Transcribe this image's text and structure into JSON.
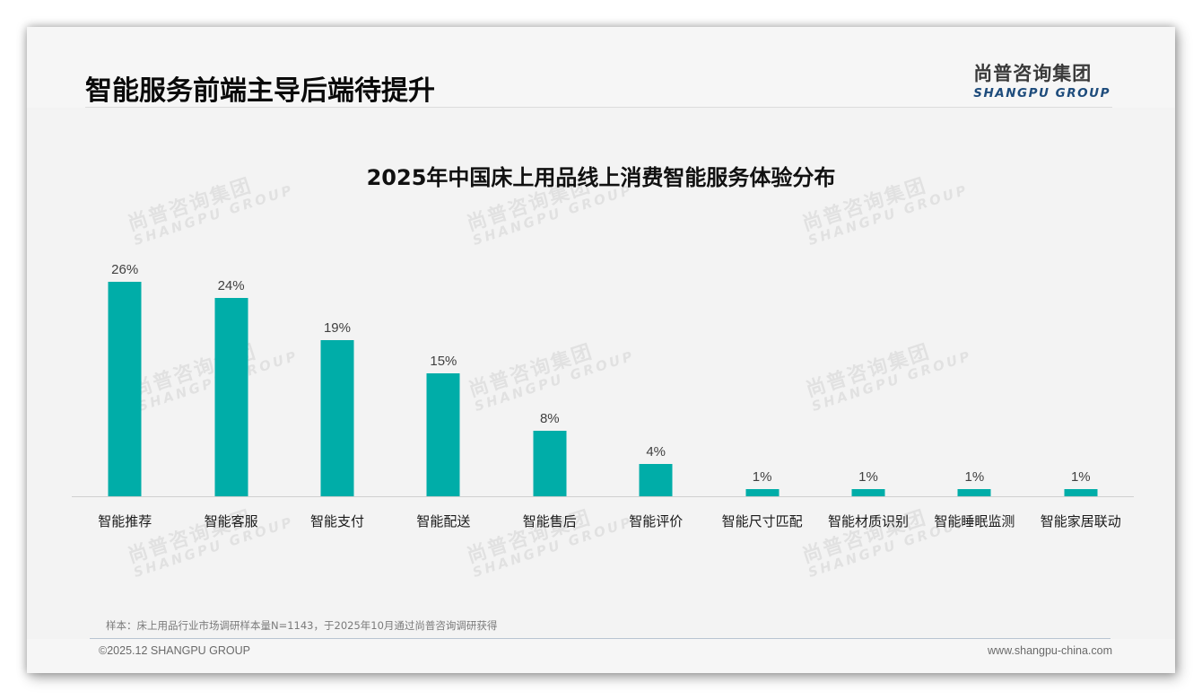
{
  "header": {
    "title": "智能服务前端主导后端待提升",
    "logo_cn": "尚普咨询集团",
    "logo_en": "SHANGPU GROUP"
  },
  "watermark": {
    "cn": "尚普咨询集团",
    "en": "SHANGPU GROUP"
  },
  "chart_data": {
    "type": "bar",
    "title": "2025年中国床上用品线上消费智能服务体验分布",
    "categories": [
      "智能推荐",
      "智能客服",
      "智能支付",
      "智能配送",
      "智能售后",
      "智能评价",
      "智能尺寸匹配",
      "智能材质识别",
      "智能睡眠监测",
      "智能家居联动"
    ],
    "values": [
      26,
      24,
      19,
      15,
      8,
      4,
      1,
      1,
      1,
      1
    ],
    "value_labels": [
      "26%",
      "24%",
      "19%",
      "15%",
      "8%",
      "4%",
      "1%",
      "1%",
      "1%",
      "1%"
    ],
    "xlabel": "",
    "ylabel": "",
    "unit": "%",
    "ylim": [
      0,
      26
    ],
    "grid": false,
    "legend": "none",
    "bar_color": "#00ada8"
  },
  "footer": {
    "note": "样本：床上用品行业市场调研样本量N=1143，于2025年10月通过尚普咨询调研获得",
    "copyright": "©2025.12 SHANGPU GROUP",
    "website": "www.shangpu-china.com"
  }
}
